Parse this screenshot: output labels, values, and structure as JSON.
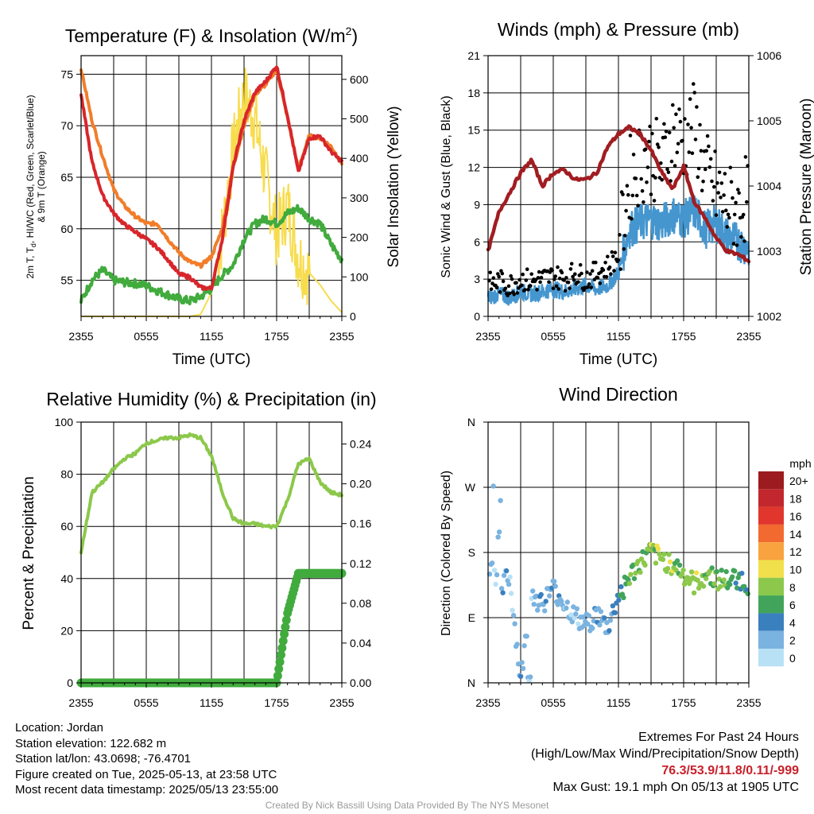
{
  "colors": {
    "temp": "#d7262b",
    "dewpoint": "#41ab3d",
    "nine_m_temp": "#f17d2a",
    "insolation": "#f7dc4e",
    "wind": "#4596cf",
    "gust": "#000000",
    "pressure": "#a11d21",
    "rh": "#8cc84b",
    "precip": "#41ab3d"
  },
  "panels": {
    "temperature": {
      "title": "Temperature (F) & Insolation (W/m",
      "title_sup": "2",
      "title_close": ")",
      "ylabel_line1": "2m T, T",
      "ylabel_sub": "d",
      "ylabel_line1_rest": ", HI/WC (Red, Green, Scarlet/Blue)",
      "ylabel_line2": "& 9m T (Orange)",
      "y2label": "Solar Insolation (Yellow)",
      "xlabel": "Time (UTC)"
    },
    "winds": {
      "title": "Winds (mph) & Pressure (mb)",
      "ylabel": "Sonic Wind & Gust (Blue, Black)",
      "y2label": "Station Pressure (Maroon)",
      "xlabel": "Time (UTC)"
    },
    "humidity": {
      "title": "Relative Humidity (%) & Precipitation (in)",
      "ylabel": "Percent & Precipitation"
    },
    "direction": {
      "title": "Wind Direction",
      "ylabel": "Direction (Colored By Speed)",
      "colorbar_title": "mph",
      "colorbar_labels": [
        "20+",
        "18",
        "16",
        "14",
        "12",
        "10",
        "8",
        "6",
        "4",
        "2",
        "0"
      ],
      "colorbar_colors": [
        "#9b1b1e",
        "#c1272d",
        "#e0362e",
        "#f26a2f",
        "#f8a33f",
        "#f1e04b",
        "#8cc84b",
        "#41a45a",
        "#3a7fbe",
        "#7ab3e0",
        "#b9e1f5"
      ]
    }
  },
  "info": {
    "location": "Location: Jordan",
    "elevation": "Station elevation: 122.682 m",
    "latlon": "Station lat/lon: 43.0698; -76.4701",
    "created": "Figure created on Tue, 2025-05-13, at 23:58 UTC",
    "recent": "Most recent data timestamp: 2025/05/13 23:55:00"
  },
  "extremes": {
    "title": "Extremes For Past 24 Hours",
    "subtitle": "(High/Low/Max Wind/Precipitation/Snow Depth)",
    "values": "76.3/53.9/11.8/0.11/-999",
    "gust": "Max Gust: 19.1 mph On 05/13 at 1905 UTC"
  },
  "credit": "Created By Nick Bassill Using Data Provided By The NYS Mesonet",
  "chart_data": [
    {
      "type": "line",
      "title": "Temperature (F) & Insolation (W/m2)",
      "xlabel": "Time (UTC)",
      "ylabel": "2m T, Td, HI/WC (Red, Green, Scarlet/Blue) & 9m T (Orange)",
      "y2label": "Solar Insolation (Yellow)",
      "x_ticks": [
        "2355",
        "0555",
        "1155",
        "1755",
        "2355"
      ],
      "y_ticks": [
        55,
        60,
        65,
        70,
        75
      ],
      "y2_ticks": [
        0,
        100,
        200,
        300,
        400,
        500,
        600
      ],
      "ylim": [
        51.5,
        76.8
      ],
      "y2lim": [
        0,
        660
      ],
      "x_hours": [
        0,
        1,
        2,
        3,
        4,
        5,
        6,
        7,
        8,
        9,
        10,
        11,
        12,
        13,
        14,
        15,
        16,
        17,
        18,
        19,
        20,
        21,
        22,
        23,
        24
      ],
      "series": [
        {
          "name": "2m T",
          "axis": "y",
          "values": [
            73,
            66.5,
            63.2,
            61.5,
            60.4,
            59.7,
            59.0,
            58.2,
            57.0,
            55.6,
            55.3,
            54.3,
            54.2,
            59.0,
            66.0,
            70.5,
            73.2,
            74.3,
            75.8,
            71.0,
            65.5,
            68.8,
            69.0,
            67.5,
            66.5
          ]
        },
        {
          "name": "9m T",
          "axis": "y",
          "values": [
            75.5,
            70.5,
            67.0,
            63.8,
            62.2,
            61.2,
            60.5,
            60.5,
            59.0,
            57.7,
            56.8,
            56.4,
            57.3,
            60.0,
            66.0,
            70.0,
            73.0,
            74.0,
            75.5,
            70.8,
            65.8,
            69.0,
            68.8,
            68.0,
            66.4
          ]
        },
        {
          "name": "Dewpoint",
          "axis": "y",
          "values": [
            53,
            55.0,
            56.0,
            55.0,
            54.8,
            54.7,
            54.5,
            54.0,
            53.6,
            53.2,
            53.0,
            53.4,
            54.2,
            55.5,
            56.5,
            59.0,
            60.5,
            61.0,
            60.5,
            61.5,
            62.0,
            61.0,
            60.5,
            58.5,
            57.0
          ]
        },
        {
          "name": "Solar Insolation",
          "axis": "y2",
          "values": [
            0,
            0,
            0,
            0,
            0,
            0,
            0,
            0,
            0,
            0,
            0,
            5,
            60,
            210,
            420,
            560,
            500,
            350,
            210,
            280,
            150,
            110,
            80,
            40,
            10
          ]
        }
      ]
    },
    {
      "type": "line",
      "title": "Winds (mph) & Pressure (mb)",
      "xlabel": "Time (UTC)",
      "ylabel": "Sonic Wind & Gust (Blue, Black)",
      "y2label": "Station Pressure (Maroon)",
      "x_ticks": [
        "2355",
        "0555",
        "1155",
        "1755",
        "2355"
      ],
      "y_ticks": [
        0,
        3,
        6,
        9,
        12,
        15,
        18,
        21
      ],
      "y2_ticks": [
        1002,
        1003,
        1004,
        1005,
        1006
      ],
      "ylim": [
        0,
        21
      ],
      "y2lim": [
        1002,
        1006
      ],
      "x_hours": [
        0,
        1,
        2,
        3,
        4,
        5,
        6,
        7,
        8,
        9,
        10,
        11,
        12,
        13,
        14,
        15,
        16,
        17,
        18,
        19,
        20,
        21,
        22,
        23,
        24
      ],
      "series": [
        {
          "name": "Sonic Wind",
          "axis": "y",
          "values": [
            1.5,
            1.8,
            1.5,
            2.0,
            1.8,
            2.0,
            2.2,
            2.0,
            2.2,
            2.5,
            2.2,
            2.5,
            3.5,
            7.0,
            7.5,
            7.8,
            7.5,
            8.2,
            7.8,
            8.5,
            7.0,
            7.5,
            6.5,
            6.0,
            5.5
          ]
        },
        {
          "name": "Gust",
          "axis": "y",
          "values": [
            2.5,
            2.8,
            2.5,
            3.0,
            2.8,
            3.0,
            3.2,
            3.0,
            3.5,
            3.0,
            3.5,
            4.0,
            5.0,
            11.0,
            12.5,
            13.0,
            12.0,
            15.0,
            14.0,
            15.5,
            11.5,
            10.0,
            9.0,
            8.5,
            10.0
          ]
        },
        {
          "name": "Station Pressure",
          "axis": "y2",
          "values": [
            1003.0,
            1003.6,
            1003.9,
            1004.2,
            1004.4,
            1004.0,
            1004.2,
            1004.25,
            1004.1,
            1004.1,
            1004.2,
            1004.6,
            1004.8,
            1004.9,
            1004.8,
            1004.55,
            1004.2,
            1003.95,
            1004.3,
            1003.75,
            1003.5,
            1003.2,
            1003.0,
            1002.95,
            1002.85
          ]
        }
      ]
    },
    {
      "type": "line",
      "title": "Relative Humidity (%) & Precipitation (in)",
      "ylabel": "Percent & Precipitation",
      "x_ticks": [
        "2355",
        "0555",
        "1155",
        "1755",
        "2355"
      ],
      "y_ticks": [
        0,
        20,
        40,
        60,
        80,
        100
      ],
      "y2_ticks": [
        0.0,
        0.04,
        0.08,
        0.12,
        0.16,
        0.2,
        0.24
      ],
      "ylim": [
        0,
        100
      ],
      "y2lim": [
        0,
        0.262
      ],
      "x_hours": [
        0,
        1,
        2,
        3,
        4,
        5,
        6,
        7,
        8,
        9,
        10,
        11,
        12,
        13,
        14,
        15,
        16,
        17,
        18,
        19,
        20,
        21,
        22,
        23,
        24
      ],
      "series": [
        {
          "name": "Relative Humidity",
          "axis": "y",
          "values": [
            50,
            73,
            77,
            82,
            86,
            88,
            92,
            93,
            94,
            94,
            95,
            94,
            87,
            73,
            63,
            61,
            61,
            60,
            60,
            70,
            84,
            86,
            77,
            73,
            72
          ]
        },
        {
          "name": "Precipitation",
          "axis": "y2",
          "values": [
            0,
            0,
            0,
            0,
            0,
            0,
            0,
            0,
            0,
            0,
            0,
            0,
            0,
            0,
            0,
            0,
            0,
            0,
            0.0,
            0.07,
            0.11,
            0.11,
            0.11,
            0.11,
            0.11
          ]
        }
      ]
    },
    {
      "type": "scatter",
      "title": "Wind Direction",
      "ylabel": "Direction (Colored By Speed)",
      "x_ticks": [
        "2355",
        "0555",
        "1155",
        "1755",
        "2355"
      ],
      "y_ticks": [
        "N",
        "E",
        "S",
        "W",
        "N"
      ],
      "ylim": [
        0,
        360
      ],
      "x_hours": [
        0,
        1,
        2,
        3,
        4,
        5,
        6,
        7,
        8,
        9,
        10,
        11,
        12,
        13,
        14,
        15,
        16,
        17,
        18,
        19,
        20,
        21,
        22,
        23,
        24
      ],
      "series": [
        {
          "name": "Direction",
          "values": [
            160,
            135,
            145,
            2,
            120,
            110,
            130,
            110,
            90,
            80,
            95,
            75,
            120,
            145,
            165,
            180,
            170,
            165,
            150,
            135,
            150,
            145,
            140,
            145,
            135
          ]
        }
      ],
      "colorbar": {
        "label": "mph",
        "ticks": [
          "0",
          "2",
          "4",
          "6",
          "8",
          "10",
          "12",
          "14",
          "16",
          "18",
          "20+"
        ]
      }
    }
  ]
}
